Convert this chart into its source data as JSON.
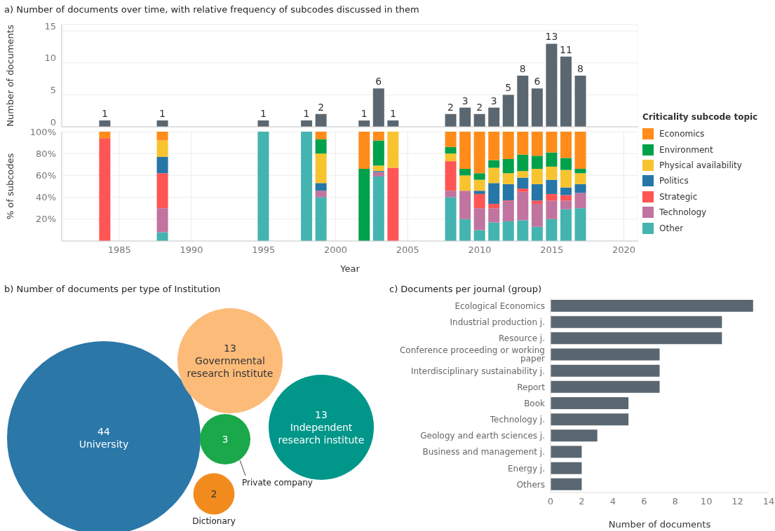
{
  "chart_data": [
    {
      "type": "bar",
      "title": "a) Number of documents over time, with relative frequency of subcodes discussed in them",
      "ylabel": "Number of documents",
      "x": [
        1984,
        1988,
        1995,
        1998,
        1999,
        2002,
        2003,
        2004,
        2008,
        2009,
        2010,
        2011,
        2012,
        2013,
        2014,
        2015,
        2016,
        2017
      ],
      "values": [
        1,
        1,
        1,
        1,
        2,
        1,
        6,
        1,
        2,
        3,
        2,
        3,
        5,
        8,
        6,
        13,
        11,
        8
      ],
      "color": "#5b6770",
      "xlim": [
        1981,
        2021
      ],
      "xticks": [
        1985,
        1990,
        1995,
        2000,
        2005,
        2010,
        2015,
        2020
      ],
      "ylim": [
        0,
        16
      ],
      "yticks": [
        0,
        5,
        10,
        15
      ],
      "data_labels": true,
      "grid": true,
      "tick_labels": "y"
    },
    {
      "type": "bar",
      "stacked": true,
      "xlabel": "Year",
      "ylabel": "% of subcodes",
      "legend_title": "Criticality subcode topic",
      "legend": "right",
      "x": [
        1984,
        1988,
        1995,
        1998,
        1999,
        2002,
        2003,
        2004,
        2008,
        2009,
        2010,
        2011,
        2012,
        2013,
        2014,
        2015,
        2016,
        2017
      ],
      "xlim": [
        1981,
        2021
      ],
      "xticks": [
        1985,
        1990,
        1995,
        2000,
        2005,
        2010,
        2015,
        2020
      ],
      "ylim": [
        0,
        100
      ],
      "yticks": [
        {
          "value": 20,
          "label": "20%"
        },
        {
          "value": 40,
          "label": "40%"
        },
        {
          "value": 60,
          "label": "60%"
        },
        {
          "value": 80,
          "label": "80%"
        },
        {
          "value": 100,
          "label": "100%"
        }
      ],
      "grid": true,
      "series": [
        {
          "name": "Other",
          "color": "#44b4b0",
          "values": [
            0,
            8,
            100,
            100,
            40,
            0,
            59,
            0,
            40,
            20,
            10,
            17,
            18,
            19,
            13,
            20,
            29,
            30
          ]
        },
        {
          "name": "Technology",
          "color": "#c0749f",
          "values": [
            0,
            22,
            0,
            0,
            6,
            0,
            4,
            0,
            6,
            26,
            20,
            13,
            18,
            26,
            21,
            17,
            8,
            14
          ]
        },
        {
          "name": "Strategic",
          "color": "#ff5555",
          "values": [
            94,
            32,
            0,
            0,
            0,
            0,
            0,
            67,
            27,
            0,
            13,
            4,
            1,
            3,
            3,
            6,
            5,
            0
          ]
        },
        {
          "name": "Politics",
          "color": "#2676a8",
          "values": [
            0,
            15,
            0,
            0,
            7,
            0,
            1,
            0,
            0,
            0,
            3,
            19,
            15,
            10,
            15,
            13,
            7,
            8
          ]
        },
        {
          "name": "Physical availability",
          "color": "#f7c42f",
          "values": [
            0,
            15,
            0,
            0,
            27,
            0,
            5,
            33,
            7,
            14,
            10,
            14,
            10,
            6,
            14,
            12,
            16,
            10
          ]
        },
        {
          "name": "Environment",
          "color": "#00a14b",
          "values": [
            0,
            0,
            0,
            0,
            13,
            66,
            23,
            0,
            6,
            6,
            6,
            7,
            13,
            15,
            12,
            13,
            11,
            4
          ]
        },
        {
          "name": "Economics",
          "color": "#ff8c1a",
          "values": [
            6,
            8,
            0,
            0,
            7,
            34,
            8,
            0,
            14,
            34,
            38,
            26,
            25,
            21,
            22,
            19,
            24,
            34
          ]
        }
      ]
    },
    {
      "type": "other",
      "title": "b) Number of documents per type of Institution",
      "categories": [
        "University",
        "Governmental research institute",
        "Independent research institute",
        "Private company",
        "Dictionary"
      ],
      "values": [
        44,
        13,
        13,
        3,
        2
      ],
      "colors": [
        "#2a77a8",
        "#fdbb7a",
        "#00968a",
        "#1aa84a",
        "#f28b1e"
      ],
      "data_labels": true
    },
    {
      "type": "bar",
      "orientation": "horizontal",
      "title": "c) Documents per journal (group)",
      "xlabel": "Number of documents",
      "categories": [
        "Ecological Economics",
        "Industrial production j.",
        "Resource j.",
        "Conference proceeding or working paper",
        "Interdisciplinary sustainability j.",
        "Report",
        "Book",
        "Technology j.",
        "Geology and earth sciences j.",
        "Business and management j.",
        "Energy j.",
        "Others"
      ],
      "values": [
        13,
        11,
        11,
        7,
        7,
        7,
        5,
        5,
        3,
        2,
        2,
        2
      ],
      "color": "#5b6770",
      "xlim": [
        0,
        14
      ],
      "xticks": [
        0,
        2,
        4,
        6,
        8,
        10,
        12,
        14
      ]
    }
  ]
}
